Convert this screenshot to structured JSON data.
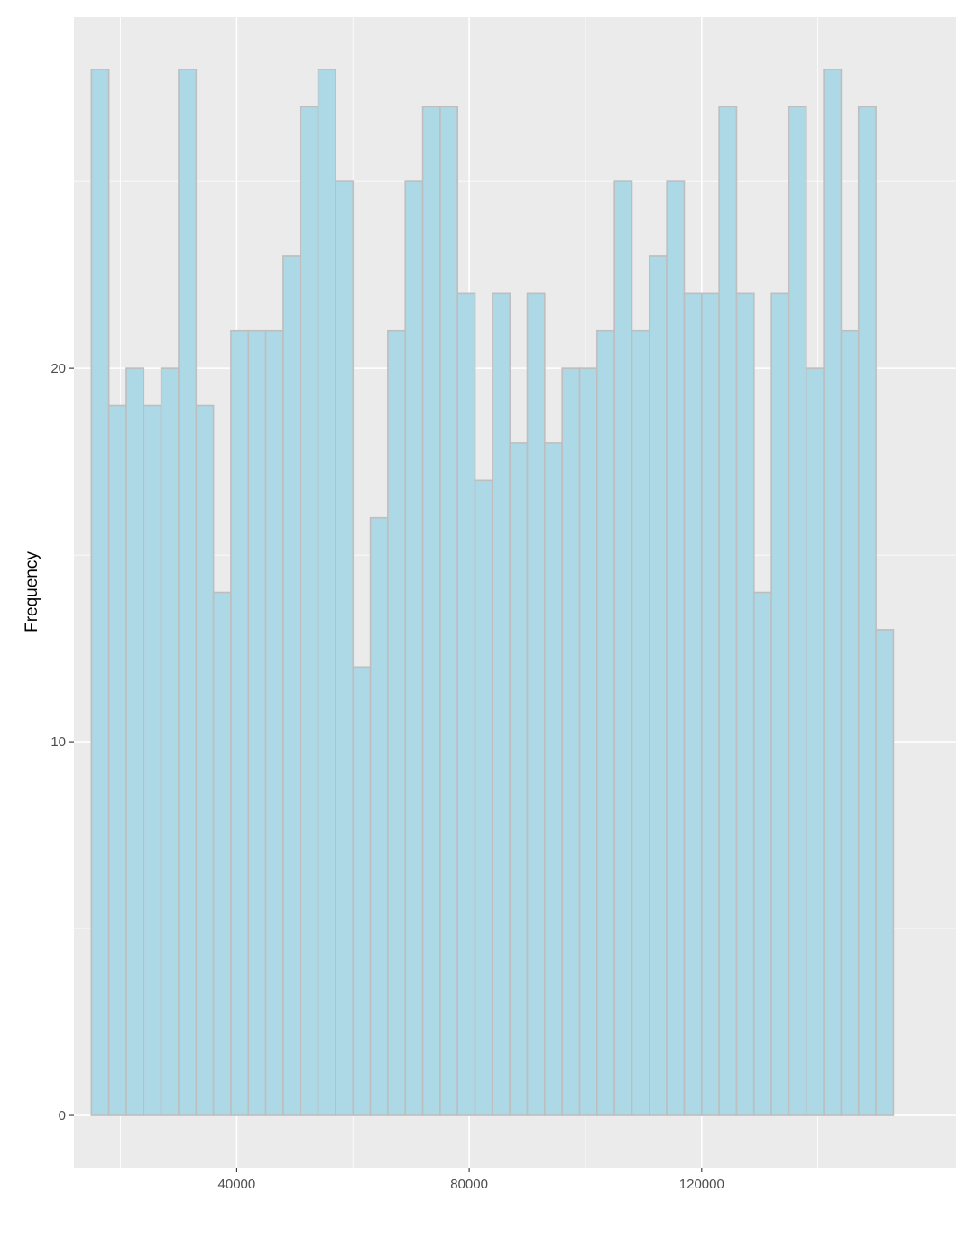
{
  "chart_data": {
    "type": "bar",
    "subtype": "histogram",
    "title": "",
    "xlabel": "",
    "ylabel": "Frequency",
    "bin_width": 3000,
    "first_bin_start": 15000,
    "values": [
      28,
      19,
      20,
      19,
      20,
      28,
      19,
      14,
      21,
      21,
      21,
      23,
      27,
      28,
      25,
      12,
      16,
      21,
      25,
      27,
      27,
      22,
      17,
      22,
      18,
      22,
      18,
      20,
      20,
      21,
      25,
      21,
      23,
      25,
      22,
      22,
      27,
      22,
      14,
      22,
      27,
      20,
      28,
      21,
      27,
      13
    ],
    "xlim": [
      12000,
      163800
    ],
    "ylim": [
      -1.4,
      29.4
    ],
    "x_ticks": [
      40000,
      80000,
      120000
    ],
    "x_tick_labels": [
      "40000",
      "80000",
      "120000"
    ],
    "y_ticks": [
      0,
      10,
      20
    ],
    "y_tick_labels": [
      "0",
      "10",
      "20"
    ],
    "grid": true,
    "legend": "none",
    "colors": {
      "panel_background": "#ebebeb",
      "grid_line": "#ffffff",
      "bar_fill": "#add8e6",
      "bar_outline": "#bebebe",
      "tick_label": "#4d4d4d",
      "axis_title": "#000000"
    }
  }
}
